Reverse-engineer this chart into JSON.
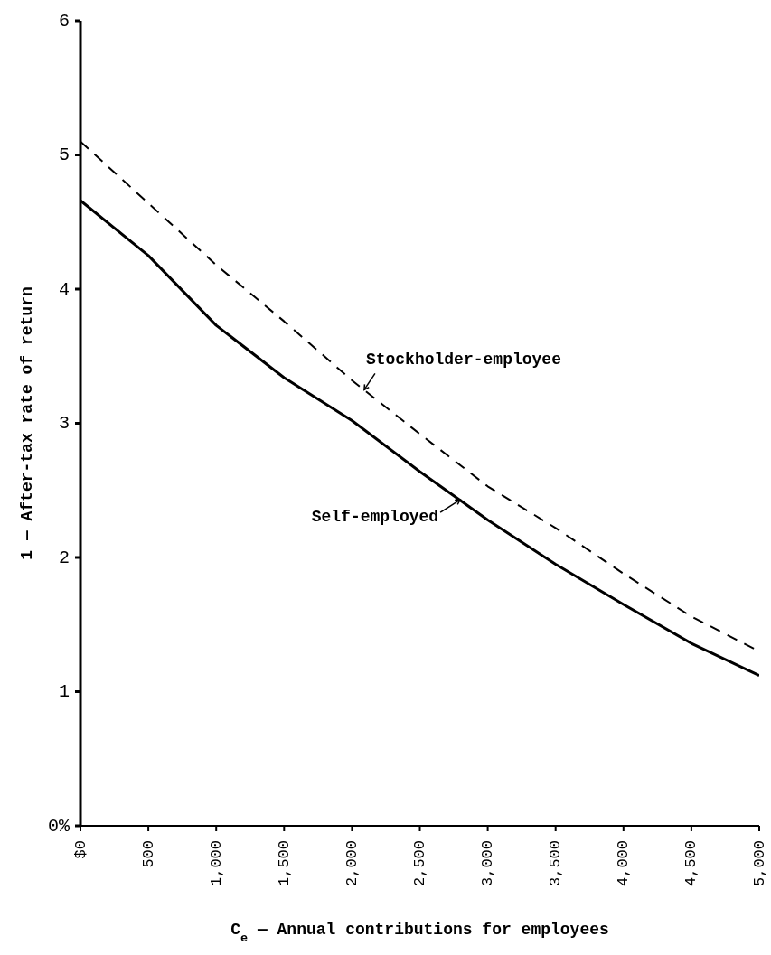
{
  "chart_data": {
    "type": "line",
    "xlabel": "C$_{e}$ — Annual contributions for employees",
    "ylabel": "1 — After-tax rate of return",
    "x": [
      0,
      500,
      1000,
      1500,
      2000,
      2500,
      3000,
      3500,
      4000,
      4500,
      5000
    ],
    "series": [
      {
        "color": "#000000",
        "line_style": "dashed",
        "values": [
          5.1,
          4.64,
          4.18,
          3.76,
          3.32,
          2.92,
          2.53,
          2.22,
          1.88,
          1.56,
          1.3
        ]
      },
      {
        "color": "#000000",
        "line_style": "solid",
        "values": [
          4.66,
          4.25,
          3.73,
          3.34,
          3.02,
          2.64,
          2.28,
          1.95,
          1.65,
          1.36,
          1.12
        ]
      }
    ],
    "xlim": [
      0,
      5000
    ],
    "xticks": [
      {
        "value": 0,
        "label": "$0"
      },
      500,
      {
        "value": 1000,
        "label": "1,000"
      },
      {
        "value": 1500,
        "label": "1,500"
      },
      {
        "value": 2000,
        "label": "2,000"
      },
      {
        "value": 2500,
        "label": "2,500"
      },
      {
        "value": 3000,
        "label": "3,000"
      },
      {
        "value": 3500,
        "label": "3,500"
      },
      {
        "value": 4000,
        "label": "4,000"
      },
      {
        "value": 4500,
        "label": "4,500"
      },
      {
        "value": 5000,
        "label": "5,000"
      }
    ],
    "ylim": [
      0,
      6
    ],
    "yticks": [
      {
        "value": 0,
        "label": "0%"
      },
      1,
      2,
      3,
      4,
      5,
      6
    ],
    "annotations": [
      {
        "text": "Stockholder-employee",
        "x": 2090,
        "y": 3.25
      },
      {
        "text": "Self-employed",
        "x": 2797,
        "y": 2.43
      }
    ],
    "grid": false,
    "legend": false,
    "marker": "none"
  }
}
